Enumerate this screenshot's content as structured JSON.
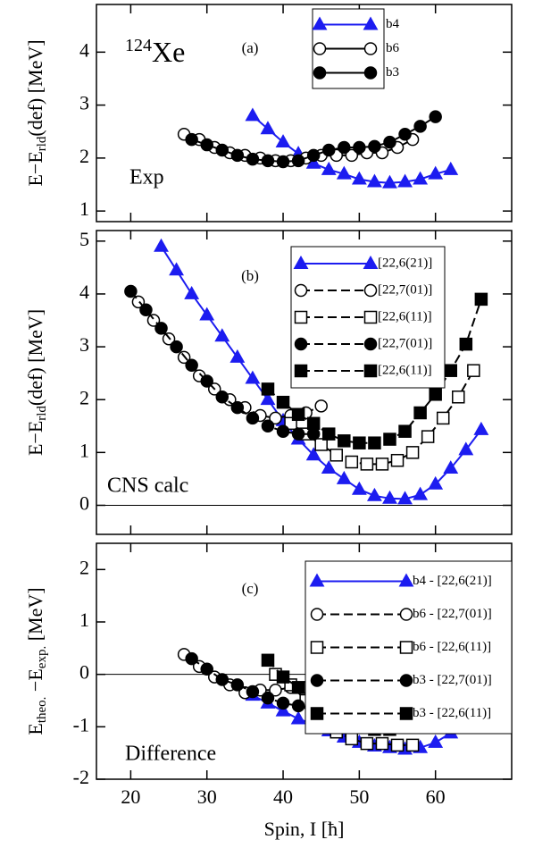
{
  "chart_data": [
    {
      "type": "line",
      "panel_label": "(a)",
      "annotations": [
        "Exp"
      ],
      "isotope": {
        "mass": "124",
        "element": "Xe"
      },
      "ylabel": [
        "E−E",
        "rld",
        "(def) [MeV]"
      ],
      "xlim": [
        15.5,
        70
      ],
      "xticks": [
        20,
        30,
        40,
        50,
        60
      ],
      "xtick_labels": false,
      "ylim": [
        0.8,
        4.9
      ],
      "yticks": [
        1,
        2,
        3,
        4
      ],
      "zero_line": false,
      "series": [
        {
          "name": "b4",
          "color": "#1c1cf0",
          "marker": "triangle",
          "filled": true,
          "dashed": false,
          "x": [
            36,
            38,
            40,
            42,
            44,
            46,
            48,
            50,
            52,
            54,
            56,
            58,
            60,
            62
          ],
          "values": [
            2.8,
            2.55,
            2.3,
            2.08,
            1.9,
            1.78,
            1.7,
            1.6,
            1.55,
            1.53,
            1.55,
            1.6,
            1.7,
            1.78
          ]
        },
        {
          "name": "b6",
          "color": "#000000",
          "marker": "circle",
          "filled": false,
          "dashed": false,
          "x": [
            27,
            29,
            31,
            33,
            35,
            37,
            39,
            41,
            43,
            45,
            47,
            49,
            51,
            53,
            55,
            57
          ],
          "values": [
            2.45,
            2.35,
            2.2,
            2.1,
            2.05,
            2.0,
            1.95,
            1.95,
            2.0,
            2.05,
            2.05,
            2.05,
            2.1,
            2.1,
            2.2,
            2.35
          ]
        },
        {
          "name": "b3",
          "color": "#000000",
          "marker": "circle",
          "filled": true,
          "dashed": false,
          "x": [
            28,
            30,
            32,
            34,
            36,
            38,
            40,
            42,
            44,
            46,
            48,
            50,
            52,
            54,
            56,
            58,
            60
          ],
          "values": [
            2.35,
            2.25,
            2.15,
            2.05,
            1.98,
            1.95,
            1.93,
            1.95,
            2.05,
            2.15,
            2.2,
            2.2,
            2.22,
            2.3,
            2.45,
            2.6,
            2.78
          ]
        }
      ]
    },
    {
      "type": "line",
      "panel_label": "(b)",
      "annotations": [
        "CNS calc"
      ],
      "ylabel": [
        "E−E",
        "rld",
        "(def) [MeV]"
      ],
      "xlim": [
        15.5,
        70
      ],
      "xticks": [
        20,
        30,
        40,
        50,
        60
      ],
      "xtick_labels": false,
      "ylim": [
        -0.55,
        5.2
      ],
      "yticks": [
        0,
        1,
        2,
        3,
        4,
        5
      ],
      "zero_line": true,
      "series": [
        {
          "name": "[22,6(21)]",
          "color": "#1c1cf0",
          "marker": "triangle",
          "filled": true,
          "dashed": false,
          "x": [
            24,
            26,
            28,
            30,
            32,
            34,
            36,
            38,
            40,
            42,
            44,
            46,
            48,
            50,
            52,
            54,
            56,
            58,
            60,
            62,
            64,
            66
          ],
          "values": [
            4.9,
            4.45,
            4.0,
            3.6,
            3.2,
            2.8,
            2.4,
            2.0,
            1.6,
            1.25,
            0.95,
            0.7,
            0.5,
            0.3,
            0.18,
            0.13,
            0.12,
            0.2,
            0.4,
            0.7,
            1.05,
            1.43
          ]
        },
        {
          "name": "[22,7(01)]",
          "color": "#000000",
          "marker": "circle",
          "filled": false,
          "dashed": true,
          "x": [
            21,
            23,
            25,
            27,
            29,
            31,
            33,
            35,
            37,
            39,
            41,
            43,
            45
          ],
          "values": [
            3.85,
            3.5,
            3.15,
            2.8,
            2.45,
            2.2,
            2.0,
            1.85,
            1.7,
            1.65,
            1.7,
            1.75,
            1.88
          ]
        },
        {
          "name": "[22,6(11)]",
          "color": "#000000",
          "marker": "square",
          "filled": false,
          "dashed": true,
          "x": [
            41,
            43,
            45,
            47,
            49,
            51,
            53,
            55,
            57,
            59,
            61,
            63,
            65
          ],
          "values": [
            1.55,
            1.35,
            1.15,
            0.95,
            0.82,
            0.78,
            0.78,
            0.85,
            1.0,
            1.3,
            1.65,
            2.05,
            2.55
          ]
        },
        {
          "name": "[22,7(01)]",
          "color": "#000000",
          "marker": "circle",
          "filled": true,
          "dashed": true,
          "x": [
            20,
            22,
            24,
            26,
            28,
            30,
            32,
            34,
            36,
            38,
            40,
            42,
            44
          ],
          "values": [
            4.05,
            3.7,
            3.35,
            3.0,
            2.65,
            2.35,
            2.05,
            1.85,
            1.65,
            1.5,
            1.4,
            1.35,
            1.35
          ]
        },
        {
          "name": "[22,6(11)]",
          "color": "#000000",
          "marker": "square",
          "filled": true,
          "dashed": true,
          "x": [
            38,
            40,
            42,
            44,
            46,
            48,
            50,
            52,
            54,
            56,
            58,
            60,
            62,
            64,
            66
          ],
          "values": [
            2.2,
            1.95,
            1.72,
            1.55,
            1.35,
            1.22,
            1.18,
            1.18,
            1.25,
            1.4,
            1.75,
            2.1,
            2.55,
            3.05,
            3.9
          ]
        }
      ]
    },
    {
      "type": "line",
      "panel_label": "(c)",
      "annotations": [
        "Difference"
      ],
      "ylabel": [
        "E",
        "theo.",
        " −E",
        "exp.",
        " [MeV]"
      ],
      "xlabel": "Spin, I [ħ]",
      "xlim": [
        15.5,
        70
      ],
      "xticks": [
        20,
        30,
        40,
        50,
        60
      ],
      "xtick_labels": true,
      "ylim": [
        -2,
        2.5
      ],
      "yticks": [
        -2,
        -1,
        0,
        1,
        2
      ],
      "zero_line": true,
      "series": [
        {
          "name": "b4 - [22,6(21)]",
          "color": "#1c1cf0",
          "marker": "triangle",
          "filled": true,
          "dashed": false,
          "x": [
            36,
            38,
            40,
            42,
            44,
            46,
            48,
            50,
            52,
            54,
            56,
            58,
            60,
            62
          ],
          "values": [
            -0.4,
            -0.55,
            -0.7,
            -0.85,
            -0.95,
            -1.08,
            -1.2,
            -1.3,
            -1.37,
            -1.4,
            -1.43,
            -1.4,
            -1.3,
            -1.12
          ]
        },
        {
          "name": "b6 - [22,7(01)]",
          "color": "#000000",
          "marker": "circle",
          "filled": false,
          "dashed": true,
          "x": [
            27,
            29,
            31,
            33,
            35,
            37,
            39,
            41,
            43,
            45
          ],
          "values": [
            0.38,
            0.15,
            -0.05,
            -0.2,
            -0.35,
            -0.3,
            -0.3,
            -0.25,
            -0.25,
            -0.17
          ]
        },
        {
          "name": "b6 - [22,6(11)]",
          "color": "#000000",
          "marker": "square",
          "filled": false,
          "dashed": true,
          "x": [
            39,
            41,
            43,
            45,
            47,
            49,
            51,
            53,
            55,
            57
          ],
          "values": [
            0,
            -0.2,
            -0.5,
            -0.9,
            -1.1,
            -1.23,
            -1.32,
            -1.32,
            -1.35,
            -1.35
          ]
        },
        {
          "name": "b3 - [22,7(01)]",
          "color": "#000000",
          "marker": "circle",
          "filled": true,
          "dashed": true,
          "x": [
            28,
            30,
            32,
            34,
            36,
            38,
            40,
            42,
            44
          ],
          "values": [
            0.3,
            0.1,
            -0.1,
            -0.2,
            -0.33,
            -0.45,
            -0.55,
            -0.6,
            -0.7
          ]
        },
        {
          "name": "b3 - [22,6(11)]",
          "color": "#000000",
          "marker": "square",
          "filled": true,
          "dashed": true,
          "x": [
            38,
            40,
            42,
            44,
            46,
            48,
            50,
            52,
            54,
            56,
            58,
            60
          ],
          "values": [
            0.27,
            -0.05,
            -0.25,
            -0.55,
            -0.8,
            -0.95,
            -1.0,
            -1.05,
            -1.05,
            -1.0,
            -0.85,
            -0.7
          ]
        }
      ]
    }
  ]
}
